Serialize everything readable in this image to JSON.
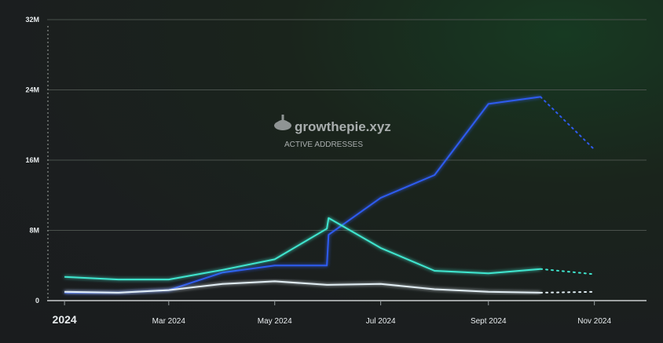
{
  "chart_data": {
    "type": "line",
    "title": "",
    "watermark": {
      "brand": "growthepie.xyz",
      "metric": "ACTIVE ADDRESSES"
    },
    "xlabel": "",
    "ylabel": "",
    "ylim": [
      0,
      32000000
    ],
    "y_ticks": [
      {
        "value": 0,
        "label": "0"
      },
      {
        "value": 8000000,
        "label": "8M"
      },
      {
        "value": 16000000,
        "label": "16M"
      },
      {
        "value": 24000000,
        "label": "24M"
      },
      {
        "value": 32000000,
        "label": "32M"
      }
    ],
    "x_domain": [
      "2023-12-22",
      "2024-12-01"
    ],
    "x_ticks": [
      {
        "date": "2024-01-01",
        "label": "2024",
        "major": true
      },
      {
        "date": "2024-03-01",
        "label": "Mar 2024",
        "major": false
      },
      {
        "date": "2024-05-01",
        "label": "May 2024",
        "major": false
      },
      {
        "date": "2024-07-01",
        "label": "Jul 2024",
        "major": false
      },
      {
        "date": "2024-09-01",
        "label": "Sept 2024",
        "major": false
      },
      {
        "date": "2024-11-01",
        "label": "Nov 2024",
        "major": false
      }
    ],
    "grid": true,
    "legend": "none",
    "projected_after": "2024-10-01",
    "series": [
      {
        "color": "#2f5bf0",
        "points": [
          [
            "2024-01-01",
            900000
          ],
          [
            "2024-02-01",
            900000
          ],
          [
            "2024-03-01",
            1200000
          ],
          [
            "2024-04-01",
            3200000
          ],
          [
            "2024-05-01",
            4000000
          ],
          [
            "2024-05-31",
            4000000
          ],
          [
            "2024-06-01",
            7500000
          ],
          [
            "2024-07-01",
            11700000
          ],
          [
            "2024-08-01",
            14300000
          ],
          [
            "2024-09-01",
            22400000
          ],
          [
            "2024-10-01",
            23200000
          ],
          [
            "2024-11-01",
            17200000
          ]
        ]
      },
      {
        "color": "#3fe6cf",
        "points": [
          [
            "2024-01-01",
            2700000
          ],
          [
            "2024-02-01",
            2400000
          ],
          [
            "2024-03-01",
            2400000
          ],
          [
            "2024-04-01",
            3500000
          ],
          [
            "2024-05-01",
            4700000
          ],
          [
            "2024-05-31",
            8200000
          ],
          [
            "2024-06-01",
            9400000
          ],
          [
            "2024-07-01",
            6000000
          ],
          [
            "2024-08-01",
            3400000
          ],
          [
            "2024-09-01",
            3100000
          ],
          [
            "2024-10-01",
            3600000
          ],
          [
            "2024-11-01",
            3000000
          ]
        ]
      },
      {
        "color": "#e2eef4",
        "points": [
          [
            "2024-01-01",
            1000000
          ],
          [
            "2024-02-01",
            900000
          ],
          [
            "2024-03-01",
            1200000
          ],
          [
            "2024-04-01",
            1900000
          ],
          [
            "2024-05-01",
            2200000
          ],
          [
            "2024-05-31",
            1800000
          ],
          [
            "2024-06-01",
            1800000
          ],
          [
            "2024-07-01",
            1900000
          ],
          [
            "2024-08-01",
            1300000
          ],
          [
            "2024-09-01",
            1000000
          ],
          [
            "2024-10-01",
            900000
          ],
          [
            "2024-11-01",
            1000000
          ]
        ]
      }
    ]
  }
}
